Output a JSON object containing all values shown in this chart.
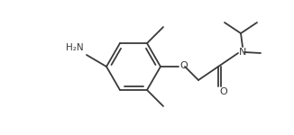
{
  "line_color": "#3a3a3a",
  "bg_color": "#ffffff",
  "lw": 1.3,
  "figsize": [
    3.26,
    1.5
  ],
  "dpi": 100,
  "h2n_label": "H₂N",
  "o_label": "O",
  "n_label": "N",
  "o2_label": "O"
}
